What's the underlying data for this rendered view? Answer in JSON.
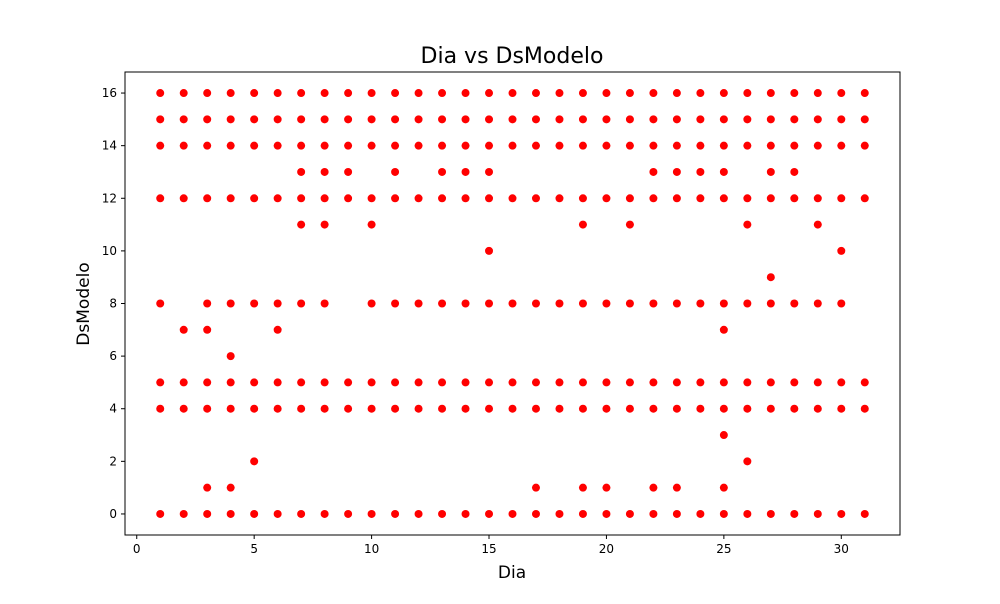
{
  "chart_data": {
    "type": "scatter",
    "title": "Dia vs DsModelo",
    "xlabel": "Dia",
    "ylabel": "DsModelo",
    "xlim": [
      -0.5,
      32.5
    ],
    "ylim": [
      -0.8,
      16.8
    ],
    "xticks": [
      0,
      5,
      10,
      15,
      20,
      25,
      30
    ],
    "yticks": [
      0,
      2,
      4,
      6,
      8,
      10,
      12,
      14,
      16
    ],
    "grid": false,
    "marker_color": "#ff0000",
    "points": [
      [
        1,
        0
      ],
      [
        1,
        4
      ],
      [
        1,
        5
      ],
      [
        1,
        8
      ],
      [
        1,
        12
      ],
      [
        1,
        14
      ],
      [
        1,
        15
      ],
      [
        1,
        16
      ],
      [
        2,
        0
      ],
      [
        2,
        4
      ],
      [
        2,
        5
      ],
      [
        2,
        7
      ],
      [
        2,
        12
      ],
      [
        2,
        14
      ],
      [
        2,
        15
      ],
      [
        2,
        16
      ],
      [
        3,
        0
      ],
      [
        3,
        1
      ],
      [
        3,
        4
      ],
      [
        3,
        5
      ],
      [
        3,
        7
      ],
      [
        3,
        8
      ],
      [
        3,
        12
      ],
      [
        3,
        14
      ],
      [
        3,
        15
      ],
      [
        3,
        16
      ],
      [
        4,
        0
      ],
      [
        4,
        1
      ],
      [
        4,
        4
      ],
      [
        4,
        5
      ],
      [
        4,
        6
      ],
      [
        4,
        8
      ],
      [
        4,
        12
      ],
      [
        4,
        14
      ],
      [
        4,
        15
      ],
      [
        4,
        16
      ],
      [
        5,
        0
      ],
      [
        5,
        2
      ],
      [
        5,
        4
      ],
      [
        5,
        5
      ],
      [
        5,
        8
      ],
      [
        5,
        12
      ],
      [
        5,
        14
      ],
      [
        5,
        15
      ],
      [
        5,
        16
      ],
      [
        6,
        0
      ],
      [
        6,
        4
      ],
      [
        6,
        5
      ],
      [
        6,
        7
      ],
      [
        6,
        8
      ],
      [
        6,
        12
      ],
      [
        6,
        14
      ],
      [
        6,
        15
      ],
      [
        6,
        16
      ],
      [
        7,
        0
      ],
      [
        7,
        4
      ],
      [
        7,
        5
      ],
      [
        7,
        8
      ],
      [
        7,
        11
      ],
      [
        7,
        12
      ],
      [
        7,
        13
      ],
      [
        7,
        14
      ],
      [
        7,
        15
      ],
      [
        7,
        16
      ],
      [
        8,
        0
      ],
      [
        8,
        4
      ],
      [
        8,
        5
      ],
      [
        8,
        8
      ],
      [
        8,
        11
      ],
      [
        8,
        12
      ],
      [
        8,
        13
      ],
      [
        8,
        14
      ],
      [
        8,
        15
      ],
      [
        8,
        16
      ],
      [
        9,
        0
      ],
      [
        9,
        4
      ],
      [
        9,
        5
      ],
      [
        9,
        12
      ],
      [
        9,
        13
      ],
      [
        9,
        14
      ],
      [
        9,
        15
      ],
      [
        9,
        16
      ],
      [
        10,
        0
      ],
      [
        10,
        4
      ],
      [
        10,
        5
      ],
      [
        10,
        8
      ],
      [
        10,
        11
      ],
      [
        10,
        12
      ],
      [
        10,
        14
      ],
      [
        10,
        15
      ],
      [
        10,
        16
      ],
      [
        11,
        0
      ],
      [
        11,
        4
      ],
      [
        11,
        5
      ],
      [
        11,
        8
      ],
      [
        11,
        12
      ],
      [
        11,
        13
      ],
      [
        11,
        14
      ],
      [
        11,
        15
      ],
      [
        11,
        16
      ],
      [
        12,
        0
      ],
      [
        12,
        4
      ],
      [
        12,
        5
      ],
      [
        12,
        8
      ],
      [
        12,
        12
      ],
      [
        12,
        14
      ],
      [
        12,
        15
      ],
      [
        12,
        16
      ],
      [
        13,
        0
      ],
      [
        13,
        4
      ],
      [
        13,
        5
      ],
      [
        13,
        8
      ],
      [
        13,
        12
      ],
      [
        13,
        13
      ],
      [
        13,
        14
      ],
      [
        13,
        15
      ],
      [
        13,
        16
      ],
      [
        14,
        0
      ],
      [
        14,
        4
      ],
      [
        14,
        5
      ],
      [
        14,
        8
      ],
      [
        14,
        12
      ],
      [
        14,
        13
      ],
      [
        14,
        14
      ],
      [
        14,
        15
      ],
      [
        14,
        16
      ],
      [
        15,
        0
      ],
      [
        15,
        4
      ],
      [
        15,
        5
      ],
      [
        15,
        8
      ],
      [
        15,
        10
      ],
      [
        15,
        12
      ],
      [
        15,
        13
      ],
      [
        15,
        14
      ],
      [
        15,
        15
      ],
      [
        15,
        16
      ],
      [
        16,
        0
      ],
      [
        16,
        4
      ],
      [
        16,
        5
      ],
      [
        16,
        8
      ],
      [
        16,
        12
      ],
      [
        16,
        14
      ],
      [
        16,
        15
      ],
      [
        16,
        16
      ],
      [
        17,
        0
      ],
      [
        17,
        1
      ],
      [
        17,
        4
      ],
      [
        17,
        5
      ],
      [
        17,
        8
      ],
      [
        17,
        12
      ],
      [
        17,
        14
      ],
      [
        17,
        15
      ],
      [
        17,
        16
      ],
      [
        18,
        0
      ],
      [
        18,
        4
      ],
      [
        18,
        5
      ],
      [
        18,
        8
      ],
      [
        18,
        12
      ],
      [
        18,
        14
      ],
      [
        18,
        15
      ],
      [
        18,
        16
      ],
      [
        19,
        0
      ],
      [
        19,
        1
      ],
      [
        19,
        4
      ],
      [
        19,
        5
      ],
      [
        19,
        8
      ],
      [
        19,
        11
      ],
      [
        19,
        12
      ],
      [
        19,
        14
      ],
      [
        19,
        15
      ],
      [
        19,
        16
      ],
      [
        20,
        0
      ],
      [
        20,
        1
      ],
      [
        20,
        4
      ],
      [
        20,
        5
      ],
      [
        20,
        8
      ],
      [
        20,
        12
      ],
      [
        20,
        14
      ],
      [
        20,
        15
      ],
      [
        20,
        16
      ],
      [
        21,
        0
      ],
      [
        21,
        4
      ],
      [
        21,
        5
      ],
      [
        21,
        8
      ],
      [
        21,
        11
      ],
      [
        21,
        12
      ],
      [
        21,
        14
      ],
      [
        21,
        15
      ],
      [
        21,
        16
      ],
      [
        22,
        0
      ],
      [
        22,
        1
      ],
      [
        22,
        4
      ],
      [
        22,
        5
      ],
      [
        22,
        8
      ],
      [
        22,
        12
      ],
      [
        22,
        13
      ],
      [
        22,
        14
      ],
      [
        22,
        15
      ],
      [
        22,
        16
      ],
      [
        23,
        0
      ],
      [
        23,
        1
      ],
      [
        23,
        4
      ],
      [
        23,
        5
      ],
      [
        23,
        8
      ],
      [
        23,
        12
      ],
      [
        23,
        13
      ],
      [
        23,
        14
      ],
      [
        23,
        15
      ],
      [
        23,
        16
      ],
      [
        24,
        0
      ],
      [
        24,
        4
      ],
      [
        24,
        5
      ],
      [
        24,
        8
      ],
      [
        24,
        12
      ],
      [
        24,
        13
      ],
      [
        24,
        14
      ],
      [
        24,
        15
      ],
      [
        24,
        16
      ],
      [
        25,
        0
      ],
      [
        25,
        1
      ],
      [
        25,
        3
      ],
      [
        25,
        4
      ],
      [
        25,
        5
      ],
      [
        25,
        7
      ],
      [
        25,
        8
      ],
      [
        25,
        12
      ],
      [
        25,
        13
      ],
      [
        25,
        14
      ],
      [
        25,
        15
      ],
      [
        25,
        16
      ],
      [
        26,
        0
      ],
      [
        26,
        2
      ],
      [
        26,
        4
      ],
      [
        26,
        5
      ],
      [
        26,
        8
      ],
      [
        26,
        11
      ],
      [
        26,
        12
      ],
      [
        26,
        14
      ],
      [
        26,
        15
      ],
      [
        26,
        16
      ],
      [
        27,
        0
      ],
      [
        27,
        4
      ],
      [
        27,
        5
      ],
      [
        27,
        8
      ],
      [
        27,
        9
      ],
      [
        27,
        12
      ],
      [
        27,
        13
      ],
      [
        27,
        14
      ],
      [
        27,
        15
      ],
      [
        27,
        16
      ],
      [
        28,
        0
      ],
      [
        28,
        4
      ],
      [
        28,
        5
      ],
      [
        28,
        8
      ],
      [
        28,
        12
      ],
      [
        28,
        13
      ],
      [
        28,
        14
      ],
      [
        28,
        15
      ],
      [
        28,
        16
      ],
      [
        29,
        0
      ],
      [
        29,
        4
      ],
      [
        29,
        5
      ],
      [
        29,
        8
      ],
      [
        29,
        11
      ],
      [
        29,
        12
      ],
      [
        29,
        14
      ],
      [
        29,
        15
      ],
      [
        29,
        16
      ],
      [
        30,
        0
      ],
      [
        30,
        4
      ],
      [
        30,
        5
      ],
      [
        30,
        8
      ],
      [
        30,
        10
      ],
      [
        30,
        12
      ],
      [
        30,
        14
      ],
      [
        30,
        15
      ],
      [
        30,
        16
      ],
      [
        31,
        0
      ],
      [
        31,
        4
      ],
      [
        31,
        5
      ],
      [
        31,
        12
      ],
      [
        31,
        14
      ],
      [
        31,
        15
      ],
      [
        31,
        16
      ]
    ]
  }
}
